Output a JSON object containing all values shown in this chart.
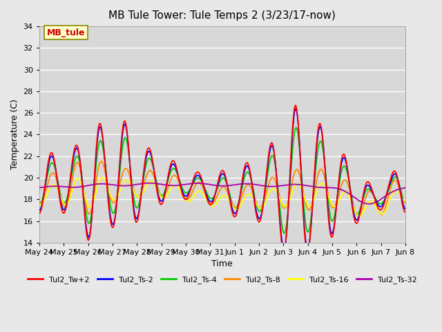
{
  "title": "MB Tule Tower: Tule Temps 2 (3/23/17-now)",
  "xlabel": "Time",
  "ylabel": "Temperature (C)",
  "ylim": [
    14,
    34
  ],
  "yticks": [
    14,
    16,
    18,
    20,
    22,
    24,
    26,
    28,
    30,
    32,
    34
  ],
  "background_color": "#e8e8e8",
  "plot_bg_color": "#d8d8d8",
  "grid_color": "#ffffff",
  "series_colors": {
    "Tul2_Tw+2": "#ff0000",
    "Tul2_Ts-2": "#0000ff",
    "Tul2_Ts-4": "#00cc00",
    "Tul2_Ts-8": "#ff8800",
    "Tul2_Ts-16": "#ffff00",
    "Tul2_Ts-32": "#aa00aa"
  },
  "x_labels": [
    "May 24",
    "May 25",
    "May 26",
    "May 27",
    "May 28",
    "May 29",
    "May 30",
    "May 31",
    "Jun 1",
    "Jun 2",
    "Jun 3",
    "Jun 4",
    "Jun 5",
    "Jun 6",
    "Jun 7",
    "Jun 8"
  ],
  "legend_label": "MB_tule",
  "legend_box_color": "#ffffcc",
  "legend_box_edge": "#888800"
}
